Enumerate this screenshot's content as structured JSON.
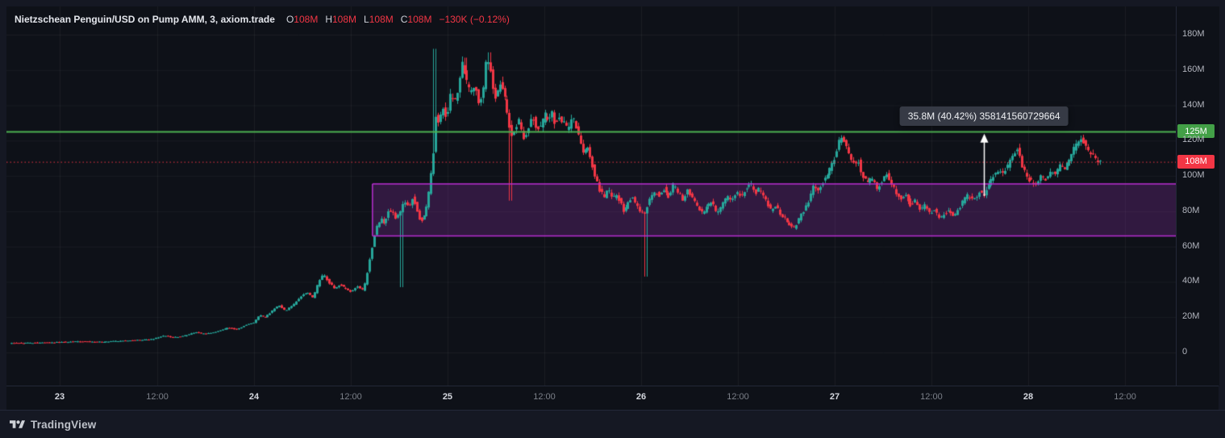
{
  "header": {
    "title": "Nietzschean Penguin/USD on Pump AMM, 3, axiom.trade",
    "ohlc": [
      {
        "label": "O",
        "value": "108M"
      },
      {
        "label": "H",
        "value": "108M"
      },
      {
        "label": "L",
        "value": "108M"
      },
      {
        "label": "C",
        "value": "108M"
      }
    ],
    "change": "−130K (−0.12%)"
  },
  "footer": {
    "brand": "TradingView"
  },
  "colors": {
    "bg_outer": "#151823",
    "bg_pane": "#0e1118",
    "grid": "rgba(255,255,255,0.05)",
    "up": "#26a69a",
    "down": "#f23645",
    "level_green": "#4caf50",
    "price_red": "#f23645",
    "box_fill": "rgba(140,45,170,0.28)",
    "box_stroke": "#b92ed1",
    "arrow": "#ffffff",
    "tooltip_bg": "#363a45",
    "axis_text": "#b2b5be"
  },
  "chart_data": {
    "type": "candlestick",
    "title": "Nietzschean Penguin/USD on Pump AMM, 3, axiom.trade",
    "symbol": "Nietzschean Penguin/USD",
    "venue": "Pump AMM",
    "interval": "3",
    "source": "axiom.trade",
    "unit": "M",
    "ylim": [
      0,
      180
    ],
    "y_ticks": [
      {
        "price": 180,
        "label": "180M"
      },
      {
        "price": 160,
        "label": "160M"
      },
      {
        "price": 140,
        "label": "140M"
      },
      {
        "price": 120,
        "label": "120M"
      },
      {
        "price": 100,
        "label": "100M"
      },
      {
        "price": 80,
        "label": "80M"
      },
      {
        "price": 60,
        "label": "60M"
      },
      {
        "price": 40,
        "label": "40M"
      },
      {
        "price": 20,
        "label": "20M"
      },
      {
        "price": 0,
        "label": "0"
      }
    ],
    "x_ticks": [
      {
        "f": 0.0455,
        "label": "23",
        "type": "day"
      },
      {
        "f": 0.129,
        "label": "12:00",
        "type": "time"
      },
      {
        "f": 0.2117,
        "label": "24",
        "type": "day"
      },
      {
        "f": 0.2945,
        "label": "12:00",
        "type": "time"
      },
      {
        "f": 0.3772,
        "label": "25",
        "type": "day"
      },
      {
        "f": 0.46,
        "label": "12:00",
        "type": "time"
      },
      {
        "f": 0.5428,
        "label": "26",
        "type": "day"
      },
      {
        "f": 0.6255,
        "label": "12:00",
        "type": "time"
      },
      {
        "f": 0.7083,
        "label": "27",
        "type": "day"
      },
      {
        "f": 0.791,
        "label": "12:00",
        "type": "time"
      },
      {
        "f": 0.8738,
        "label": "28",
        "type": "day"
      },
      {
        "f": 0.9566,
        "label": "12:00",
        "type": "time"
      }
    ],
    "price_line": {
      "price": 108,
      "label": "108M"
    },
    "level_line": {
      "price": 125,
      "label": "125M"
    },
    "range_box": {
      "f_start": 0.313,
      "f_end": 1.0,
      "top": 95.5,
      "bottom": 66
    },
    "measure": {
      "f": 0.836,
      "from": 88.6,
      "to": 124.4,
      "label": "35.8M (40.42%) 358141560729664"
    },
    "series": {
      "candles": 460,
      "anchors": [
        [
          0.003,
          5.2
        ],
        [
          0.022,
          5.5
        ],
        [
          0.043,
          5.8
        ],
        [
          0.063,
          6.2
        ],
        [
          0.084,
          6.0
        ],
        [
          0.105,
          6.8
        ],
        [
          0.125,
          7.5
        ],
        [
          0.136,
          9.5
        ],
        [
          0.143,
          8.5
        ],
        [
          0.153,
          9.5
        ],
        [
          0.163,
          11.5
        ],
        [
          0.17,
          10.5
        ],
        [
          0.181,
          12
        ],
        [
          0.191,
          14
        ],
        [
          0.198,
          13
        ],
        [
          0.205,
          15.5
        ],
        [
          0.212,
          17
        ],
        [
          0.217,
          21
        ],
        [
          0.222,
          20
        ],
        [
          0.229,
          24
        ],
        [
          0.234,
          27
        ],
        [
          0.239,
          23.5
        ],
        [
          0.246,
          27
        ],
        [
          0.253,
          32
        ],
        [
          0.258,
          34
        ],
        [
          0.263,
          31
        ],
        [
          0.269,
          42
        ],
        [
          0.272,
          44
        ],
        [
          0.276,
          40
        ],
        [
          0.281,
          36.5
        ],
        [
          0.286,
          38.5
        ],
        [
          0.291,
          36
        ],
        [
          0.296,
          34.5
        ],
        [
          0.301,
          37.5
        ],
        [
          0.306,
          35
        ],
        [
          0.31,
          48
        ],
        [
          0.314,
          62
        ],
        [
          0.317,
          71
        ],
        [
          0.321,
          76
        ],
        [
          0.324,
          72
        ],
        [
          0.328,
          82
        ],
        [
          0.331,
          79
        ],
        [
          0.334,
          76
        ],
        [
          0.338,
          80
        ],
        [
          0.341,
          86
        ],
        [
          0.345,
          83
        ],
        [
          0.348,
          88
        ],
        [
          0.352,
          80
        ],
        [
          0.355,
          73
        ],
        [
          0.359,
          79
        ],
        [
          0.362,
          90
        ],
        [
          0.366,
          112
        ],
        [
          0.368,
          135
        ],
        [
          0.37,
          130
        ],
        [
          0.374,
          138
        ],
        [
          0.377,
          133
        ],
        [
          0.381,
          148
        ],
        [
          0.384,
          141
        ],
        [
          0.388,
          154
        ],
        [
          0.391,
          165
        ],
        [
          0.394,
          154
        ],
        [
          0.398,
          146
        ],
        [
          0.401,
          151
        ],
        [
          0.405,
          142
        ],
        [
          0.408,
          147
        ],
        [
          0.411,
          166
        ],
        [
          0.414,
          162
        ],
        [
          0.417,
          150
        ],
        [
          0.419,
          144
        ],
        [
          0.422,
          153
        ],
        [
          0.425,
          150
        ],
        [
          0.428,
          141
        ],
        [
          0.43,
          131
        ],
        [
          0.433,
          124
        ],
        [
          0.436,
          127
        ],
        [
          0.439,
          131
        ],
        [
          0.443,
          121
        ],
        [
          0.446,
          126
        ],
        [
          0.45,
          134
        ],
        [
          0.453,
          129
        ],
        [
          0.457,
          126
        ],
        [
          0.461,
          136
        ],
        [
          0.463,
          131
        ],
        [
          0.467,
          137
        ],
        [
          0.47,
          129
        ],
        [
          0.474,
          134
        ],
        [
          0.477,
          130
        ],
        [
          0.481,
          126
        ],
        [
          0.484,
          134
        ],
        [
          0.488,
          128
        ],
        [
          0.491,
          121
        ],
        [
          0.494,
          112
        ],
        [
          0.498,
          116
        ],
        [
          0.501,
          108
        ],
        [
          0.505,
          98
        ],
        [
          0.508,
          92
        ],
        [
          0.512,
          88
        ],
        [
          0.515,
          93
        ],
        [
          0.519,
          87
        ],
        [
          0.522,
          90
        ],
        [
          0.526,
          84
        ],
        [
          0.529,
          79
        ],
        [
          0.532,
          84
        ],
        [
          0.536,
          89
        ],
        [
          0.539,
          84
        ],
        [
          0.543,
          80
        ],
        [
          0.546,
          78
        ],
        [
          0.55,
          86
        ],
        [
          0.554,
          91
        ],
        [
          0.559,
          89
        ],
        [
          0.563,
          93
        ],
        [
          0.567,
          88
        ],
        [
          0.571,
          95
        ],
        [
          0.575,
          91
        ],
        [
          0.579,
          87
        ],
        [
          0.583,
          92
        ],
        [
          0.588,
          87
        ],
        [
          0.592,
          81
        ],
        [
          0.596,
          79
        ],
        [
          0.6,
          83
        ],
        [
          0.604,
          86
        ],
        [
          0.608,
          79
        ],
        [
          0.612,
          83
        ],
        [
          0.617,
          89
        ],
        [
          0.621,
          86
        ],
        [
          0.625,
          91
        ],
        [
          0.629,
          89
        ],
        [
          0.633,
          93
        ],
        [
          0.637,
          96
        ],
        [
          0.641,
          90
        ],
        [
          0.645,
          93
        ],
        [
          0.65,
          86
        ],
        [
          0.654,
          81
        ],
        [
          0.658,
          83
        ],
        [
          0.662,
          79
        ],
        [
          0.666,
          76
        ],
        [
          0.67,
          73
        ],
        [
          0.674,
          70
        ],
        [
          0.679,
          76
        ],
        [
          0.683,
          81
        ],
        [
          0.687,
          86
        ],
        [
          0.691,
          95
        ],
        [
          0.695,
          92
        ],
        [
          0.699,
          97
        ],
        [
          0.703,
          101
        ],
        [
          0.708,
          108
        ],
        [
          0.712,
          118
        ],
        [
          0.715,
          122
        ],
        [
          0.719,
          116
        ],
        [
          0.722,
          111
        ],
        [
          0.726,
          106
        ],
        [
          0.729,
          109
        ],
        [
          0.732,
          101
        ],
        [
          0.737,
          96
        ],
        [
          0.741,
          99
        ],
        [
          0.745,
          93
        ],
        [
          0.749,
          96
        ],
        [
          0.753,
          101
        ],
        [
          0.757,
          96
        ],
        [
          0.761,
          91
        ],
        [
          0.766,
          87
        ],
        [
          0.77,
          89
        ],
        [
          0.774,
          83
        ],
        [
          0.778,
          86
        ],
        [
          0.782,
          81
        ],
        [
          0.786,
          83
        ],
        [
          0.79,
          79
        ],
        [
          0.794,
          81
        ],
        [
          0.799,
          76
        ],
        [
          0.803,
          79
        ],
        [
          0.807,
          81
        ],
        [
          0.811,
          77
        ],
        [
          0.815,
          81
        ],
        [
          0.819,
          86
        ],
        [
          0.823,
          89
        ],
        [
          0.828,
          86
        ],
        [
          0.832,
          91
        ],
        [
          0.836,
          89
        ],
        [
          0.84,
          94
        ],
        [
          0.844,
          99
        ],
        [
          0.848,
          103
        ],
        [
          0.852,
          101
        ],
        [
          0.857,
          106
        ],
        [
          0.861,
          111
        ],
        [
          0.865,
          116
        ],
        [
          0.869,
          106
        ],
        [
          0.873,
          99
        ],
        [
          0.877,
          97
        ],
        [
          0.881,
          95
        ],
        [
          0.886,
          100
        ],
        [
          0.89,
          98
        ],
        [
          0.894,
          103
        ],
        [
          0.898,
          101
        ],
        [
          0.902,
          106
        ],
        [
          0.906,
          104
        ],
        [
          0.91,
          110
        ],
        [
          0.914,
          116
        ],
        [
          0.919,
          121
        ],
        [
          0.922,
          119
        ],
        [
          0.926,
          114
        ],
        [
          0.929,
          112
        ],
        [
          0.932,
          110
        ],
        [
          0.936,
          108
        ]
      ],
      "spikes": [
        [
          0.337,
          37,
          "low"
        ],
        [
          0.366,
          172,
          "high"
        ],
        [
          0.391,
          167,
          "high"
        ],
        [
          0.411,
          170,
          "high"
        ],
        [
          0.43,
          86,
          "low"
        ],
        [
          0.546,
          43,
          "low"
        ]
      ]
    }
  }
}
